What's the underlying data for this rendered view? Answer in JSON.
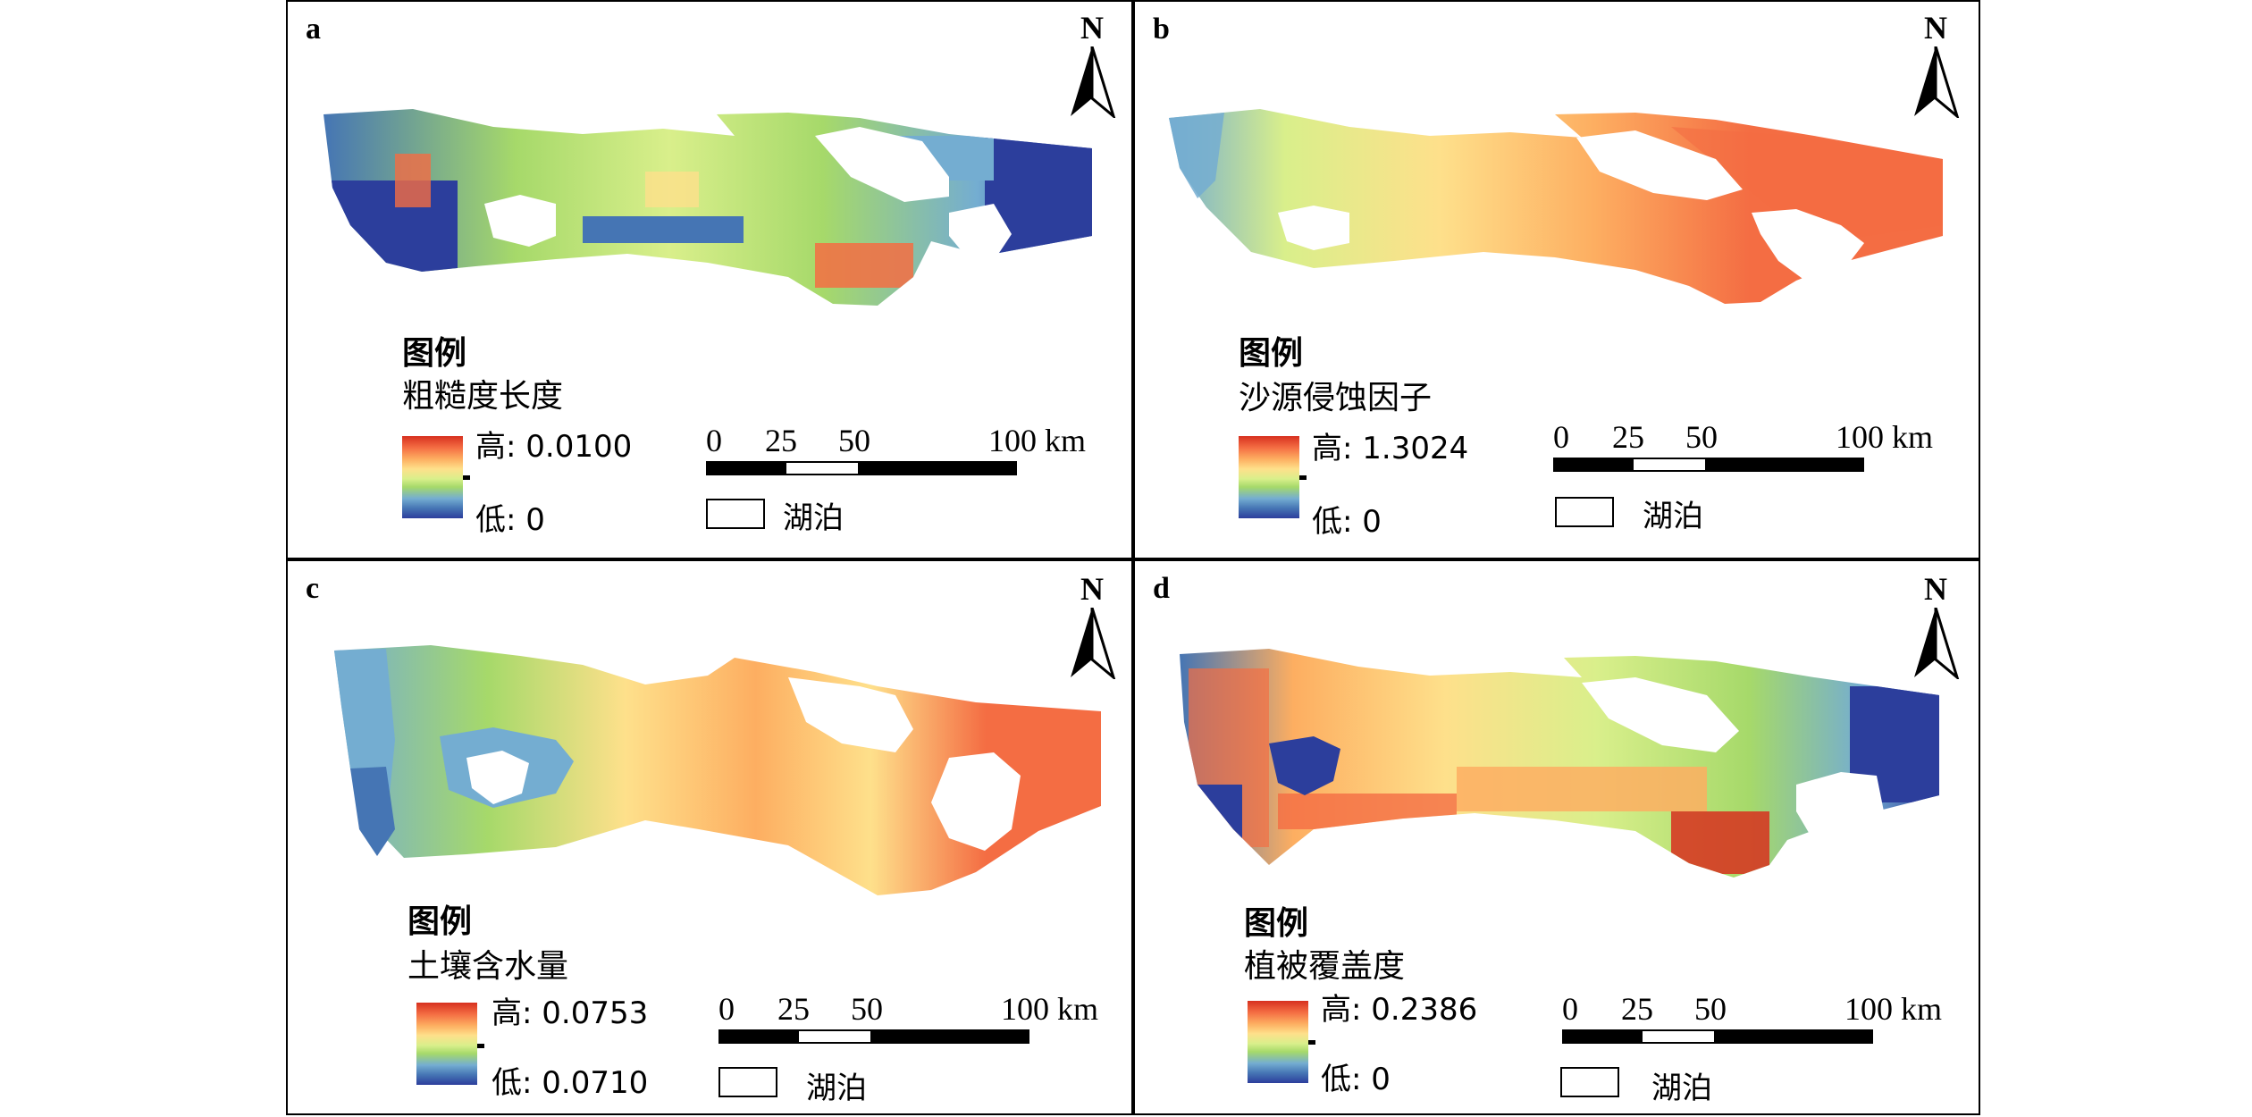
{
  "north_label": "N",
  "lake_label": "湖泊",
  "legend_title": "图例",
  "scale_labels": [
    "0",
    "25",
    "50",
    "100 km"
  ],
  "panels": [
    {
      "letter": "a",
      "variable": "粗糙度长度",
      "high": "高: 0.0100",
      "low": "低: 0",
      "style": "roughness"
    },
    {
      "letter": "b",
      "variable": "沙源侵蚀因子",
      "high": "高: 1.3024",
      "low": "低: 0",
      "style": "erosion"
    },
    {
      "letter": "c",
      "variable": "土壤含水量",
      "high": "高: 0.0753",
      "low": "低: 0.0710",
      "style": "moisture"
    },
    {
      "letter": "d",
      "variable": "植被覆盖度",
      "high": "高: 0.2386",
      "low": "低: 0",
      "style": "vegetation"
    }
  ],
  "colors": {
    "ramp": [
      "#d7301f",
      "#f46d43",
      "#fdae61",
      "#fee08b",
      "#d9ef8b",
      "#a6d96a",
      "#74add1",
      "#4575b4",
      "#2c3e9c"
    ]
  }
}
